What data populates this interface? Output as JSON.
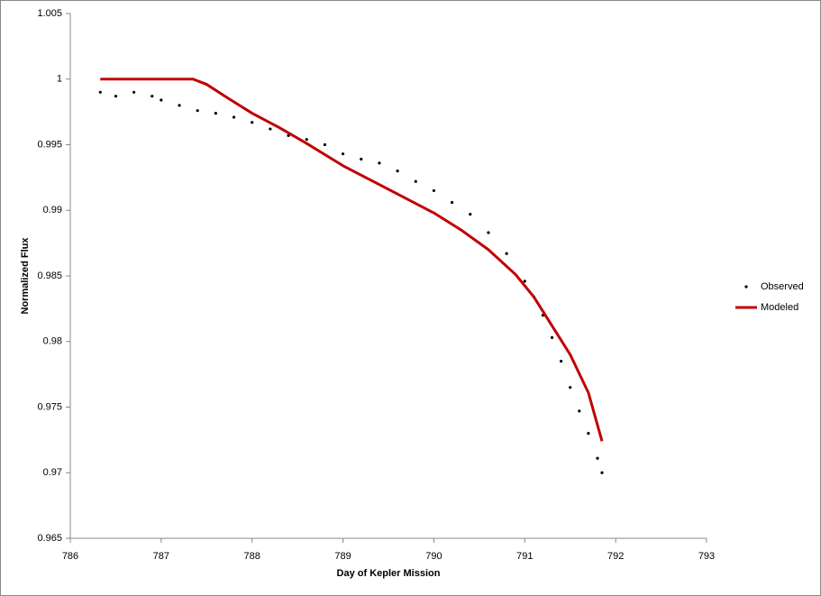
{
  "chart_data": {
    "type": "scatter",
    "x_label": "Day of Kepler Mission",
    "y_label": "Normalized Flux",
    "xlim": [
      786,
      793
    ],
    "xticks": [
      786,
      787,
      788,
      789,
      790,
      791,
      792,
      793
    ],
    "ylim": [
      0.965,
      1.005
    ],
    "yticks": [
      0.965,
      0.97,
      0.975,
      0.98,
      0.985,
      0.99,
      0.995,
      1,
      1.005
    ],
    "legend": "right",
    "series": [
      {
        "name": "Observed",
        "color": "#000000",
        "style": "markers",
        "x": [
          786.33,
          786.5,
          786.7,
          786.9,
          787.0,
          787.2,
          787.4,
          787.6,
          787.8,
          788.0,
          788.2,
          788.4,
          788.6,
          788.8,
          789.0,
          789.2,
          789.4,
          789.6,
          789.8,
          790.0,
          790.2,
          790.4,
          790.6,
          790.8,
          791.0,
          791.1,
          791.2,
          791.3,
          791.4,
          791.5,
          791.6,
          791.7,
          791.8,
          791.85
        ],
        "values": [
          0.999,
          0.9987,
          0.999,
          0.9987,
          0.9984,
          0.998,
          0.9976,
          0.9974,
          0.9971,
          0.9967,
          0.9962,
          0.9957,
          0.9954,
          0.995,
          0.9943,
          0.9939,
          0.9936,
          0.993,
          0.9922,
          0.9915,
          0.9906,
          0.9897,
          0.9883,
          0.9867,
          0.9846,
          0.9834,
          0.982,
          0.9803,
          0.9785,
          0.9765,
          0.9747,
          0.973,
          0.9711,
          0.97
        ]
      },
      {
        "name": "Modeled",
        "color": "#c00000",
        "style": "line",
        "x": [
          786.33,
          787.35,
          787.5,
          787.7,
          788.0,
          788.3,
          788.6,
          789.0,
          789.5,
          790.0,
          790.3,
          790.6,
          790.9,
          791.1,
          791.3,
          791.5,
          791.7,
          791.85
        ],
        "values": [
          1,
          1,
          0.9996,
          0.9987,
          0.9974,
          0.9963,
          0.9951,
          0.9934,
          0.9916,
          0.9898,
          0.9885,
          0.987,
          0.9851,
          0.9834,
          0.9812,
          0.979,
          0.9761,
          0.9724
        ]
      }
    ]
  }
}
